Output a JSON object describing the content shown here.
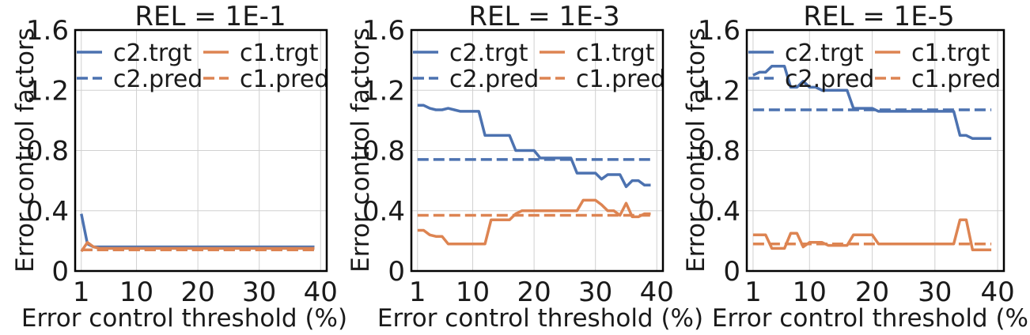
{
  "chart_data": [
    {
      "type": "line",
      "title": "REL = 1E-1",
      "xlabel": "Error control threshold (%)",
      "ylabel": "Error control factors",
      "xlim": [
        0,
        41
      ],
      "ylim": [
        0,
        1.6
      ],
      "xticks": [
        1,
        10,
        20,
        30,
        40
      ],
      "yticks": [
        0,
        0.4,
        0.8,
        1.2,
        1.6
      ],
      "grid": true,
      "legend_position": "top",
      "series": [
        {
          "name": "c2.trgt",
          "color": "#4C72B0",
          "dash": "solid",
          "x": [
            1,
            2,
            3,
            5,
            10,
            20,
            30,
            39
          ],
          "y": [
            0.38,
            0.18,
            0.16,
            0.16,
            0.16,
            0.16,
            0.16,
            0.16
          ]
        },
        {
          "name": "c1.trgt",
          "color": "#DD8452",
          "dash": "solid",
          "x": [
            1,
            2,
            3,
            4,
            10,
            20,
            30,
            39
          ],
          "y": [
            0.13,
            0.19,
            0.16,
            0.15,
            0.15,
            0.15,
            0.15,
            0.15
          ]
        },
        {
          "name": "c2.pred",
          "color": "#4C72B0",
          "dash": "dashed",
          "x": [
            1,
            39
          ],
          "y": [
            0.14,
            0.14
          ]
        },
        {
          "name": "c1.pred",
          "color": "#DD8452",
          "dash": "dashed",
          "x": [
            1,
            39
          ],
          "y": [
            0.14,
            0.14
          ]
        }
      ]
    },
    {
      "type": "line",
      "title": "REL = 1E-3",
      "xlabel": "Error control threshold (%)",
      "ylabel": "Error control factors",
      "xlim": [
        0,
        41
      ],
      "ylim": [
        0,
        1.6
      ],
      "xticks": [
        1,
        10,
        20,
        30,
        40
      ],
      "yticks": [
        0,
        0.4,
        0.8,
        1.2,
        1.6
      ],
      "grid": true,
      "legend_position": "top",
      "series": [
        {
          "name": "c2.trgt",
          "color": "#4C72B0",
          "dash": "solid",
          "x": [
            1,
            2,
            3,
            4,
            5,
            6,
            7,
            8,
            9,
            10,
            11,
            12,
            13,
            14,
            15,
            16,
            17,
            18,
            19,
            20,
            21,
            22,
            23,
            24,
            25,
            26,
            27,
            28,
            29,
            30,
            31,
            32,
            33,
            34,
            35,
            36,
            37,
            38,
            39
          ],
          "y": [
            1.1,
            1.1,
            1.08,
            1.07,
            1.07,
            1.08,
            1.07,
            1.06,
            1.06,
            1.06,
            1.06,
            0.9,
            0.9,
            0.9,
            0.9,
            0.9,
            0.8,
            0.8,
            0.8,
            0.8,
            0.75,
            0.75,
            0.75,
            0.75,
            0.75,
            0.75,
            0.65,
            0.65,
            0.65,
            0.65,
            0.61,
            0.64,
            0.64,
            0.64,
            0.56,
            0.6,
            0.6,
            0.57,
            0.57
          ]
        },
        {
          "name": "c1.trgt",
          "color": "#DD8452",
          "dash": "solid",
          "x": [
            1,
            2,
            3,
            4,
            5,
            6,
            7,
            8,
            9,
            10,
            11,
            12,
            13,
            14,
            15,
            16,
            17,
            18,
            19,
            20,
            21,
            22,
            23,
            24,
            25,
            26,
            27,
            28,
            29,
            30,
            31,
            32,
            33,
            34,
            35,
            36,
            37,
            38,
            39
          ],
          "y": [
            0.27,
            0.27,
            0.24,
            0.23,
            0.23,
            0.18,
            0.18,
            0.18,
            0.18,
            0.18,
            0.18,
            0.18,
            0.34,
            0.34,
            0.34,
            0.34,
            0.38,
            0.4,
            0.4,
            0.4,
            0.4,
            0.4,
            0.4,
            0.4,
            0.4,
            0.4,
            0.4,
            0.47,
            0.47,
            0.47,
            0.44,
            0.4,
            0.4,
            0.37,
            0.45,
            0.36,
            0.36,
            0.38,
            0.38
          ]
        },
        {
          "name": "c2.pred",
          "color": "#4C72B0",
          "dash": "dashed",
          "x": [
            1,
            39
          ],
          "y": [
            0.74,
            0.74
          ]
        },
        {
          "name": "c1.pred",
          "color": "#DD8452",
          "dash": "dashed",
          "x": [
            1,
            39
          ],
          "y": [
            0.37,
            0.37
          ]
        }
      ]
    },
    {
      "type": "line",
      "title": "REL = 1E-5",
      "xlabel": "Error control threshold (%)",
      "ylabel": "Error control factors",
      "xlim": [
        0,
        41
      ],
      "ylim": [
        0,
        1.6
      ],
      "xticks": [
        1,
        10,
        20,
        30,
        40
      ],
      "yticks": [
        0,
        0.4,
        0.8,
        1.2,
        1.6
      ],
      "grid": true,
      "legend_position": "top",
      "series": [
        {
          "name": "c2.trgt",
          "color": "#4C72B0",
          "dash": "solid",
          "x": [
            1,
            2,
            3,
            4,
            5,
            6,
            7,
            8,
            9,
            10,
            11,
            12,
            13,
            14,
            15,
            16,
            17,
            18,
            19,
            20,
            21,
            22,
            23,
            24,
            25,
            26,
            27,
            28,
            29,
            30,
            31,
            32,
            33,
            34,
            35,
            36,
            37,
            38,
            39
          ],
          "y": [
            1.3,
            1.32,
            1.32,
            1.36,
            1.36,
            1.36,
            1.22,
            1.22,
            1.26,
            1.22,
            1.22,
            1.2,
            1.2,
            1.2,
            1.2,
            1.2,
            1.08,
            1.08,
            1.08,
            1.08,
            1.06,
            1.06,
            1.06,
            1.06,
            1.06,
            1.06,
            1.06,
            1.06,
            1.06,
            1.06,
            1.06,
            1.06,
            1.06,
            0.9,
            0.9,
            0.88,
            0.88,
            0.88,
            0.88
          ]
        },
        {
          "name": "c1.trgt",
          "color": "#DD8452",
          "dash": "solid",
          "x": [
            1,
            2,
            3,
            4,
            5,
            6,
            7,
            8,
            9,
            10,
            11,
            12,
            13,
            14,
            15,
            16,
            17,
            18,
            19,
            20,
            21,
            22,
            23,
            24,
            25,
            26,
            27,
            28,
            29,
            30,
            31,
            32,
            33,
            34,
            35,
            36,
            37,
            38,
            39
          ],
          "y": [
            0.24,
            0.24,
            0.24,
            0.15,
            0.15,
            0.15,
            0.25,
            0.25,
            0.16,
            0.19,
            0.19,
            0.19,
            0.17,
            0.17,
            0.17,
            0.17,
            0.24,
            0.24,
            0.24,
            0.24,
            0.18,
            0.18,
            0.18,
            0.18,
            0.18,
            0.18,
            0.18,
            0.18,
            0.18,
            0.18,
            0.18,
            0.18,
            0.18,
            0.34,
            0.34,
            0.14,
            0.14,
            0.14,
            0.14
          ]
        },
        {
          "name": "c2.pred",
          "color": "#4C72B0",
          "dash": "dashed",
          "x": [
            1,
            39
          ],
          "y": [
            1.07,
            1.07
          ]
        },
        {
          "name": "c1.pred",
          "color": "#DD8452",
          "dash": "dashed",
          "x": [
            1,
            39
          ],
          "y": [
            0.18,
            0.18
          ]
        }
      ]
    }
  ]
}
